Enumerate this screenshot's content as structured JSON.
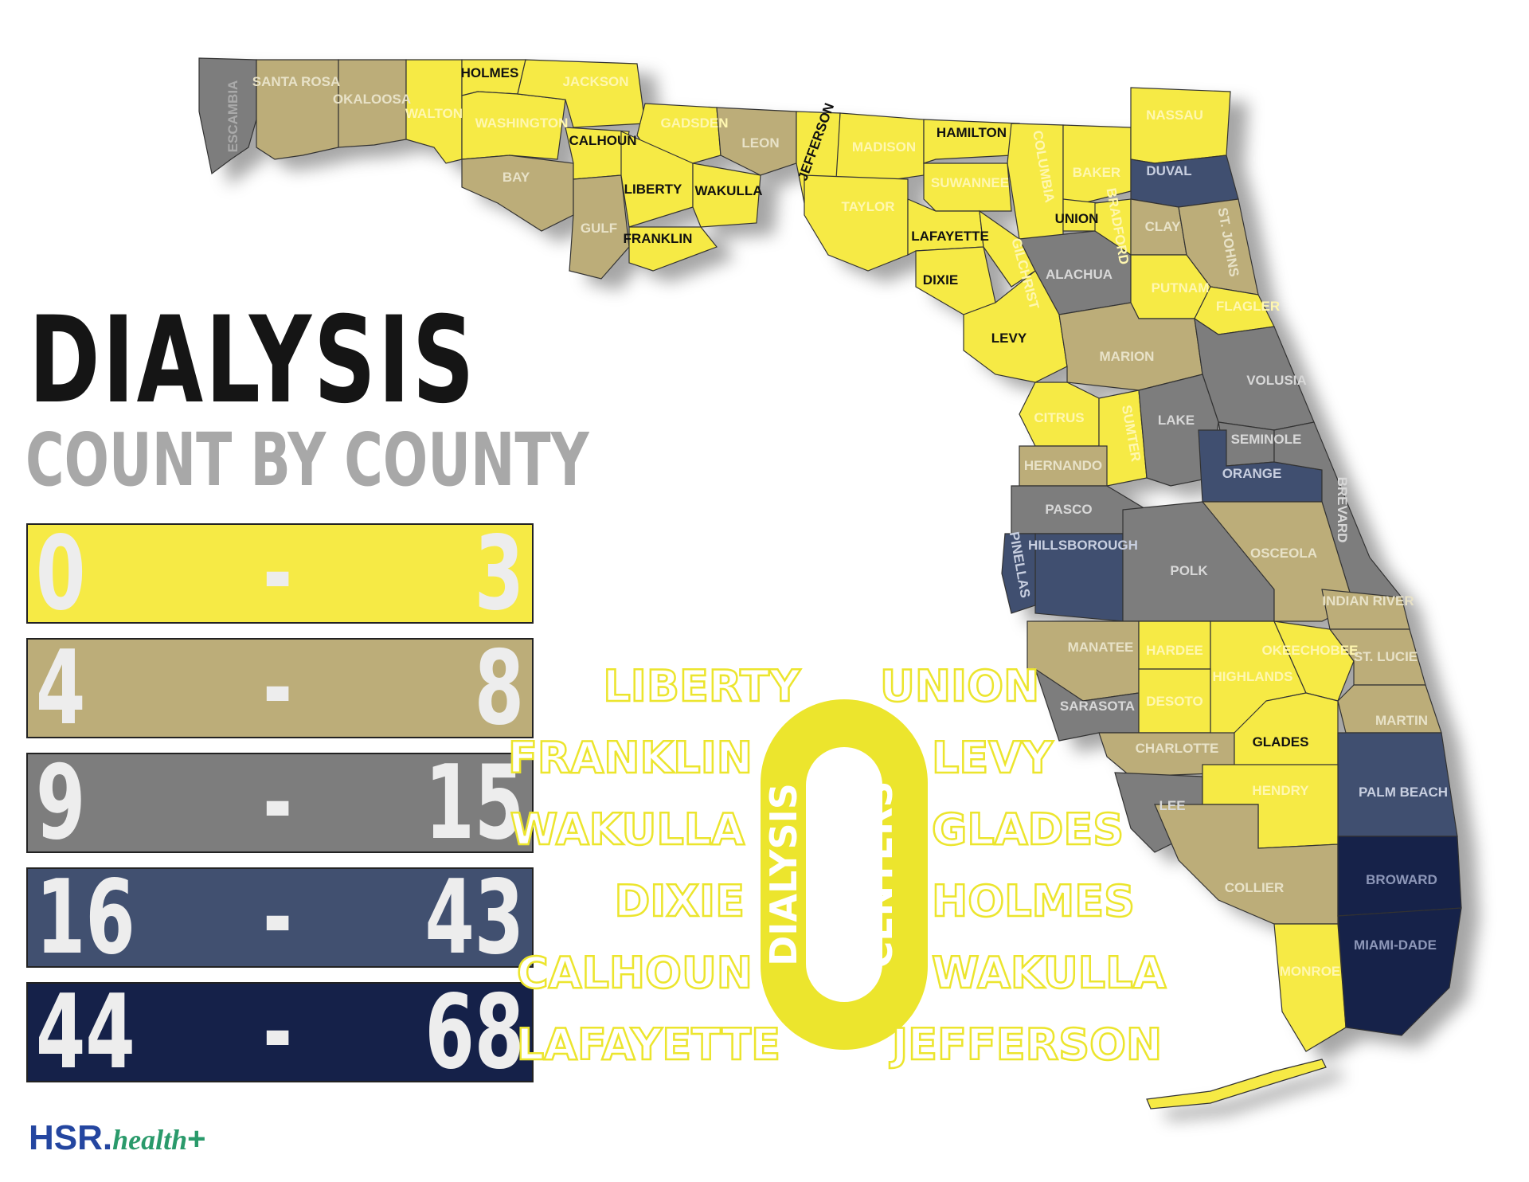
{
  "title": "DIALYSIS",
  "subtitle": "COUNT BY COUNTY",
  "colors": {
    "range_0_3": "#f6ea45",
    "range_4_8": "#bcad79",
    "range_9_15": "#7d7d7d",
    "range_16_43": "#415070",
    "range_44_68": "#152149"
  },
  "legend": [
    {
      "low": "0",
      "dash": "-",
      "high": "3",
      "color": "#f6ea45"
    },
    {
      "low": "4",
      "dash": "-",
      "high": "8",
      "color": "#bcad79"
    },
    {
      "low": "9",
      "dash": "-",
      "high": "15",
      "color": "#7d7d7d"
    },
    {
      "low": "16",
      "dash": "-",
      "high": "43",
      "color": "#415070"
    },
    {
      "low": "44",
      "dash": "-",
      "high": "68",
      "color": "#152149"
    }
  ],
  "zero_callout": {
    "number": "0",
    "left_label": "DIALYSIS",
    "right_label": "CENTERS",
    "counties_left": [
      "LIBERTY",
      "FRANKLIN",
      "WAKULLA",
      "DIXIE",
      "CALHOUN",
      "LAFAYETTE"
    ],
    "counties_right": [
      "UNION",
      "LEVY",
      "GLADES",
      "HOLMES",
      "WAKULLA",
      "JEFFERSON"
    ]
  },
  "counties": [
    {
      "name": "ESCAMBIA",
      "range": "9-15"
    },
    {
      "name": "SANTA ROSA",
      "range": "4-8"
    },
    {
      "name": "OKALOOSA",
      "range": "4-8"
    },
    {
      "name": "WALTON",
      "range": "0-3"
    },
    {
      "name": "HOLMES",
      "range": "0-3"
    },
    {
      "name": "WASHINGTON",
      "range": "0-3"
    },
    {
      "name": "JACKSON",
      "range": "0-3"
    },
    {
      "name": "BAY",
      "range": "4-8"
    },
    {
      "name": "CALHOUN",
      "range": "0-3"
    },
    {
      "name": "GADSDEN",
      "range": "0-3"
    },
    {
      "name": "LEON",
      "range": "4-8"
    },
    {
      "name": "JEFFERSON",
      "range": "0-3"
    },
    {
      "name": "MADISON",
      "range": "0-3"
    },
    {
      "name": "HAMILTON",
      "range": "0-3"
    },
    {
      "name": "COLUMBIA",
      "range": "0-3"
    },
    {
      "name": "BAKER",
      "range": "0-3"
    },
    {
      "name": "NASSAU",
      "range": "0-3"
    },
    {
      "name": "DUVAL",
      "range": "16-43"
    },
    {
      "name": "GULF",
      "range": "4-8"
    },
    {
      "name": "LIBERTY",
      "range": "0-3"
    },
    {
      "name": "WAKULLA",
      "range": "0-3"
    },
    {
      "name": "FRANKLIN",
      "range": "0-3"
    },
    {
      "name": "TAYLOR",
      "range": "0-3"
    },
    {
      "name": "SUWANNEE",
      "range": "0-3"
    },
    {
      "name": "LAFAYETTE",
      "range": "0-3"
    },
    {
      "name": "UNION",
      "range": "0-3"
    },
    {
      "name": "BRADFORD",
      "range": "0-3"
    },
    {
      "name": "CLAY",
      "range": "4-8"
    },
    {
      "name": "ST. JOHNS",
      "range": "4-8"
    },
    {
      "name": "GILCHRIST",
      "range": "0-3"
    },
    {
      "name": "DIXIE",
      "range": "0-3"
    },
    {
      "name": "ALACHUA",
      "range": "9-15"
    },
    {
      "name": "PUTNAM",
      "range": "0-3"
    },
    {
      "name": "FLAGLER",
      "range": "0-3"
    },
    {
      "name": "LEVY",
      "range": "0-3"
    },
    {
      "name": "MARION",
      "range": "4-8"
    },
    {
      "name": "VOLUSIA",
      "range": "9-15"
    },
    {
      "name": "CITRUS",
      "range": "0-3"
    },
    {
      "name": "SUMTER",
      "range": "0-3"
    },
    {
      "name": "LAKE",
      "range": "9-15"
    },
    {
      "name": "SEMINOLE",
      "range": "9-15"
    },
    {
      "name": "ORANGE",
      "range": "16-43"
    },
    {
      "name": "HERNANDO",
      "range": "4-8"
    },
    {
      "name": "PASCO",
      "range": "9-15"
    },
    {
      "name": "BREVARD",
      "range": "9-15"
    },
    {
      "name": "HILLSBOROUGH",
      "range": "16-43"
    },
    {
      "name": "PINELLAS",
      "range": "16-43"
    },
    {
      "name": "POLK",
      "range": "9-15"
    },
    {
      "name": "OSCEOLA",
      "range": "4-8"
    },
    {
      "name": "INDIAN RIVER",
      "range": "4-8"
    },
    {
      "name": "MANATEE",
      "range": "4-8"
    },
    {
      "name": "HARDEE",
      "range": "0-3"
    },
    {
      "name": "HIGHLANDS",
      "range": "0-3"
    },
    {
      "name": "OKEECHOBEE",
      "range": "0-3"
    },
    {
      "name": "ST. LUCIE",
      "range": "4-8"
    },
    {
      "name": "SARASOTA",
      "range": "9-15"
    },
    {
      "name": "DESOTO",
      "range": "0-3"
    },
    {
      "name": "MARTIN",
      "range": "4-8"
    },
    {
      "name": "CHARLOTTE",
      "range": "4-8"
    },
    {
      "name": "GLADES",
      "range": "0-3"
    },
    {
      "name": "PALM BEACH",
      "range": "16-43"
    },
    {
      "name": "LEE",
      "range": "9-15"
    },
    {
      "name": "HENDRY",
      "range": "0-3"
    },
    {
      "name": "COLLIER",
      "range": "4-8"
    },
    {
      "name": "BROWARD",
      "range": "44-68"
    },
    {
      "name": "MONROE",
      "range": "0-3"
    },
    {
      "name": "MIAMI-DADE",
      "range": "44-68"
    }
  ],
  "logo": {
    "brand": "HSR",
    "dot": ".",
    "sub": "health",
    "plus": "+"
  }
}
